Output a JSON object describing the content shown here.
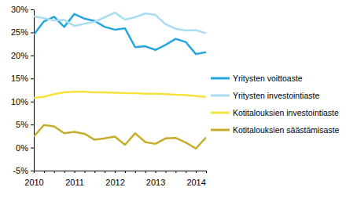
{
  "chart_data": {
    "type": "line",
    "categories": [
      "2010",
      null,
      null,
      null,
      "2011",
      null,
      null,
      null,
      "2012",
      null,
      null,
      null,
      "2013",
      null,
      null,
      null,
      "2014",
      null
    ],
    "series": [
      {
        "name": "Yritysten voittoaste",
        "color": "#27a5de",
        "values": [
          24.5,
          27.4,
          28.4,
          26.2,
          29.0,
          28.0,
          27.5,
          26.2,
          25.6,
          25.9,
          21.8,
          22.0,
          21.2,
          22.3,
          23.6,
          22.9,
          20.3,
          20.7
        ]
      },
      {
        "name": "Yritysten investointiaste",
        "color": "#aadcf2",
        "values": [
          28.5,
          28.1,
          27.6,
          27.7,
          26.4,
          26.9,
          27.3,
          28.3,
          29.3,
          27.8,
          28.3,
          29.1,
          28.8,
          26.8,
          25.8,
          25.4,
          25.5,
          24.8
        ]
      },
      {
        "name": "Kotitalouksien investointiaste",
        "color": "#f6e23c",
        "values": [
          10.8,
          11.0,
          11.6,
          12.0,
          12.1,
          12.1,
          12.0,
          12.0,
          11.9,
          11.8,
          11.8,
          11.7,
          11.7,
          11.6,
          11.5,
          11.4,
          11.2,
          11.0
        ]
      },
      {
        "name": "Kotitalouksien säästämisaste",
        "color": "#c6ad2b",
        "values": [
          2.4,
          4.9,
          4.6,
          3.1,
          3.4,
          3.0,
          1.7,
          2.0,
          2.4,
          0.6,
          3.1,
          1.2,
          0.8,
          2.0,
          2.1,
          1.1,
          -0.2,
          2.2
        ]
      }
    ],
    "ylim": [
      -5,
      30
    ],
    "yticks": [
      {
        "value": -5,
        "label": "-5%"
      },
      {
        "value": 0,
        "label": "0%"
      },
      {
        "value": 5,
        "label": "5%"
      },
      {
        "value": 10,
        "label": "10%"
      },
      {
        "value": 15,
        "label": "15%"
      },
      {
        "value": 20,
        "label": "20%"
      },
      {
        "value": 25,
        "label": "25%"
      },
      {
        "value": 30,
        "label": "30%"
      }
    ],
    "grid": false,
    "legend": "right"
  }
}
